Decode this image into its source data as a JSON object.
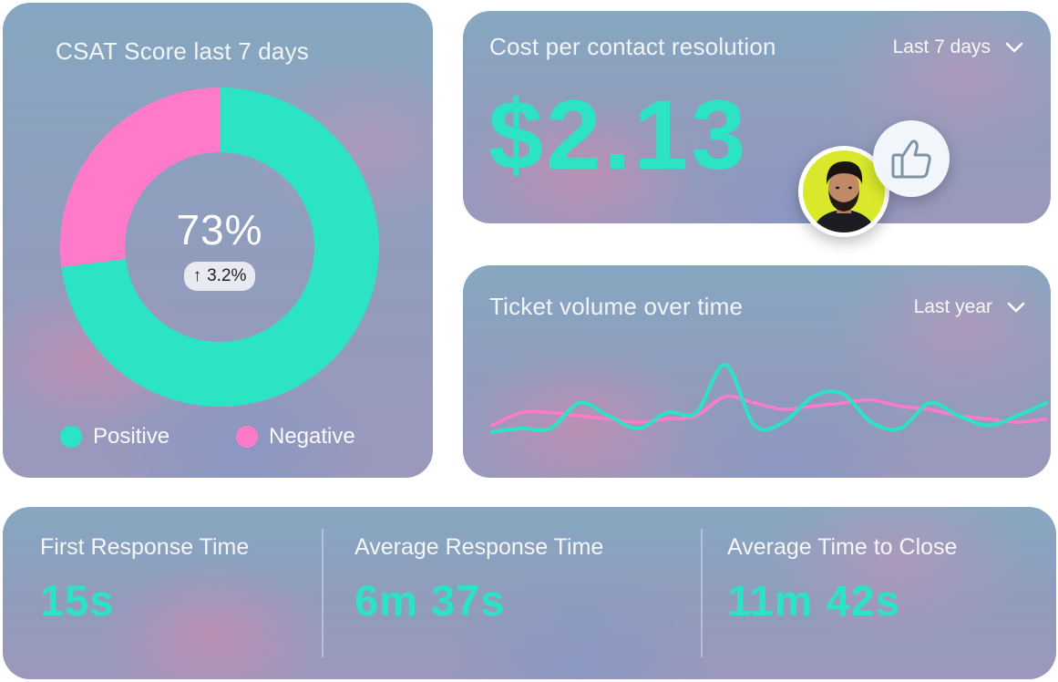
{
  "csat": {
    "title": "CSAT Score last 7 days",
    "percent": "73%",
    "delta": "3.2%",
    "legend": [
      {
        "label": "Positive",
        "color": "#2ce3c3"
      },
      {
        "label": "Negative",
        "color": "#ff7bc9"
      }
    ]
  },
  "cost": {
    "title": "Cost per contact resolution",
    "period": "Last 7 days",
    "value": "$2.13"
  },
  "ticket": {
    "title": "Ticket volume over time",
    "period": "Last year"
  },
  "metrics": [
    {
      "label": "First Response Time",
      "value": "15s"
    },
    {
      "label": "Average Response Time",
      "value": "6m 37s"
    },
    {
      "label": "Average Time to Close",
      "value": "11m 42s"
    }
  ],
  "chart_data": [
    {
      "type": "pie",
      "categories": [
        "Positive",
        "Negative"
      ],
      "values": [
        73,
        27
      ],
      "colors": [
        "#2ce3c3",
        "#ff7bc9"
      ],
      "donut": true,
      "center_label": "73%",
      "legend": "bottom"
    },
    {
      "type": "line",
      "x": [
        0,
        1,
        2,
        3,
        4,
        5,
        6,
        7,
        8,
        9,
        10,
        11,
        12,
        13,
        14,
        15,
        16,
        17,
        18,
        19
      ],
      "series": [
        {
          "values": [
            10,
            12,
            12,
            28,
            20,
            12,
            22,
            22,
            52,
            14,
            16,
            32,
            34,
            16,
            12,
            28,
            20,
            14,
            20,
            28
          ],
          "color": "#2ce3c3"
        },
        {
          "values": [
            14,
            22,
            22,
            20,
            18,
            16,
            18,
            20,
            32,
            28,
            24,
            26,
            28,
            30,
            26,
            24,
            20,
            18,
            16,
            18
          ],
          "color": "#ff7bc9"
        }
      ],
      "ylim": [
        0,
        60
      ],
      "grid": false
    }
  ]
}
